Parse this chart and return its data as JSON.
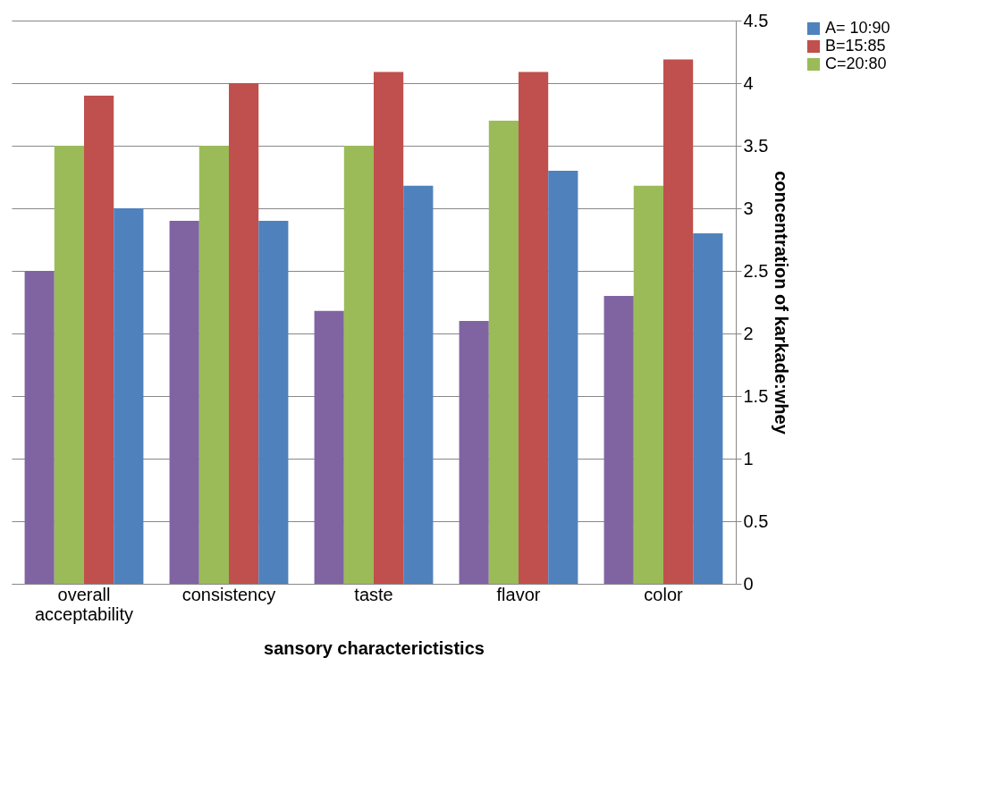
{
  "chart_data": {
    "type": "bar",
    "xlabel": "sansory characterictistics",
    "ylabel": "concentration of karkade:whey",
    "categories": [
      "overall acceptability",
      "consistency",
      "taste",
      "flavor",
      "color"
    ],
    "series": [
      {
        "color": "#8064a2",
        "values": [
          2.5,
          2.9,
          2.18,
          2.1,
          2.3
        ]
      },
      {
        "name": "C=20:80",
        "color": "#9bbb59",
        "values": [
          3.5,
          3.5,
          3.5,
          3.7,
          3.18
        ]
      },
      {
        "name": "B=15:85",
        "color": "#c0504d",
        "values": [
          3.9,
          4.0,
          4.09,
          4.09,
          4.19
        ]
      },
      {
        "name": "A= 10:90",
        "color": "#4f81bd",
        "values": [
          3.0,
          2.9,
          3.18,
          3.3,
          2.8
        ]
      }
    ],
    "ylim": [
      0,
      4.5
    ],
    "yticks": [
      0,
      0.5,
      1,
      1.5,
      2,
      2.5,
      3,
      3.5,
      4,
      4.5
    ],
    "grid": "y",
    "legend": "right"
  }
}
